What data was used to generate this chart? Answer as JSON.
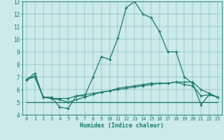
{
  "xlabel": "Humidex (Indice chaleur)",
  "xlim": [
    -0.5,
    23.5
  ],
  "ylim": [
    4,
    13
  ],
  "yticks": [
    4,
    5,
    6,
    7,
    8,
    9,
    10,
    11,
    12,
    13
  ],
  "xticks": [
    0,
    1,
    2,
    3,
    4,
    5,
    6,
    7,
    8,
    9,
    10,
    11,
    12,
    13,
    14,
    15,
    16,
    17,
    18,
    19,
    20,
    21,
    22,
    23
  ],
  "bg_color": "#cceaea",
  "line_color": "#1a7a6e",
  "line1_x": [
    0,
    1,
    2,
    3,
    4,
    5,
    6,
    7,
    8,
    9,
    10,
    11,
    12,
    13,
    14,
    15,
    16,
    17,
    18,
    19,
    20,
    21,
    22,
    23
  ],
  "line1_y": [
    6.8,
    7.3,
    5.4,
    5.4,
    4.6,
    4.5,
    5.5,
    5.5,
    7.0,
    8.6,
    8.4,
    10.1,
    12.5,
    13.0,
    12.0,
    11.7,
    10.6,
    9.0,
    9.0,
    7.0,
    6.5,
    4.8,
    5.6,
    5.4
  ],
  "line2_x": [
    0,
    1,
    2,
    3,
    4,
    5,
    6,
    7,
    8,
    9,
    10,
    11,
    12,
    13,
    14,
    15,
    16,
    17,
    18,
    19,
    20,
    21,
    22,
    23
  ],
  "line2_y": [
    6.8,
    7.1,
    5.4,
    5.3,
    5.3,
    5.3,
    5.5,
    5.6,
    5.7,
    5.8,
    5.9,
    6.1,
    6.2,
    6.3,
    6.4,
    6.5,
    6.5,
    6.5,
    6.6,
    6.6,
    6.6,
    6.0,
    5.7,
    5.4
  ],
  "line3_x": [
    0,
    23
  ],
  "line3_y": [
    5.0,
    5.0
  ],
  "line4_x": [
    0,
    1,
    2,
    3,
    4,
    5,
    6,
    7,
    8,
    9,
    10,
    11,
    12,
    13,
    14,
    15,
    16,
    17,
    18,
    19,
    20,
    21,
    22,
    23
  ],
  "line4_y": [
    6.8,
    7.0,
    5.4,
    5.3,
    5.2,
    5.0,
    5.2,
    5.4,
    5.6,
    5.8,
    5.9,
    6.0,
    6.1,
    6.2,
    6.3,
    6.4,
    6.5,
    6.5,
    6.6,
    6.4,
    6.3,
    5.5,
    5.6,
    5.4
  ]
}
